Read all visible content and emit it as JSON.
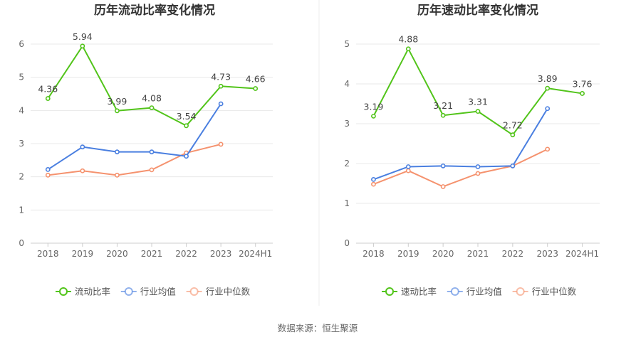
{
  "source": "数据来源：恒生聚源",
  "chart_data": [
    {
      "type": "line",
      "title": "历年流动比率变化情况",
      "categories": [
        "2018",
        "2019",
        "2020",
        "2021",
        "2022",
        "2023",
        "2024H1"
      ],
      "ylim": [
        0,
        6
      ],
      "yticks": [
        "0",
        "1",
        "2",
        "3",
        "4",
        "5",
        "6"
      ],
      "grid": true,
      "legend_position": "bottom",
      "series": [
        {
          "name": "流动比率",
          "color": "#52c41a",
          "values": [
            4.36,
            5.94,
            3.99,
            4.08,
            3.54,
            4.73,
            4.66
          ],
          "labels": [
            "4.36",
            "5.94",
            "3.99",
            "4.08",
            "3.54",
            "4.73",
            "4.66"
          ]
        },
        {
          "name": "行业均值",
          "color": "#4a7fe0",
          "values": [
            2.22,
            2.9,
            2.75,
            2.75,
            2.62,
            4.2,
            null
          ]
        },
        {
          "name": "行业中位数",
          "color": "#f5926e",
          "values": [
            2.05,
            2.18,
            2.05,
            2.21,
            2.72,
            2.98,
            null
          ]
        }
      ]
    },
    {
      "type": "line",
      "title": "历年速动比率变化情况",
      "categories": [
        "2018",
        "2019",
        "2020",
        "2021",
        "2022",
        "2023",
        "2024H1"
      ],
      "ylim": [
        0,
        5
      ],
      "yticks": [
        "0",
        "1",
        "2",
        "3",
        "4",
        "5"
      ],
      "grid": true,
      "legend_position": "bottom",
      "series": [
        {
          "name": "速动比率",
          "color": "#52c41a",
          "values": [
            3.19,
            4.88,
            3.21,
            3.31,
            2.72,
            3.89,
            3.76
          ],
          "labels": [
            "3.19",
            "4.88",
            "3.21",
            "3.31",
            "2.72",
            "3.89",
            "3.76"
          ]
        },
        {
          "name": "行业均值",
          "color": "#4a7fe0",
          "values": [
            1.6,
            1.92,
            1.94,
            1.92,
            1.94,
            3.38,
            null
          ]
        },
        {
          "name": "行业中位数",
          "color": "#f5926e",
          "values": [
            1.48,
            1.82,
            1.42,
            1.75,
            1.94,
            2.36,
            null
          ]
        }
      ]
    }
  ]
}
